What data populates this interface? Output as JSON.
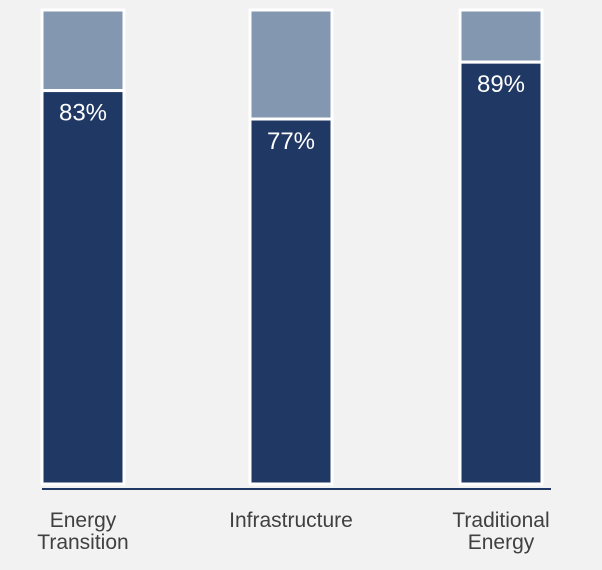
{
  "chart_data": {
    "type": "bar",
    "stacked": true,
    "categories": [
      [
        "Energy",
        "Transition"
      ],
      [
        "Infrastructure"
      ],
      [
        "Traditional",
        "Energy"
      ]
    ],
    "series": [
      {
        "values": [
          83,
          77,
          89
        ],
        "labels": [
          "83%",
          "77%",
          "89%"
        ]
      },
      {
        "values": [
          17,
          23,
          11
        ]
      }
    ],
    "ylim": [
      0,
      100
    ],
    "grid": false,
    "legend": "none",
    "colors": {
      "background": "#f2f2f2",
      "primary": "#203864",
      "secondary": "#8497b0",
      "border": "#ffffff",
      "axis": "#203864",
      "label_text": "#ffffff",
      "tick_text": "#404040"
    }
  }
}
